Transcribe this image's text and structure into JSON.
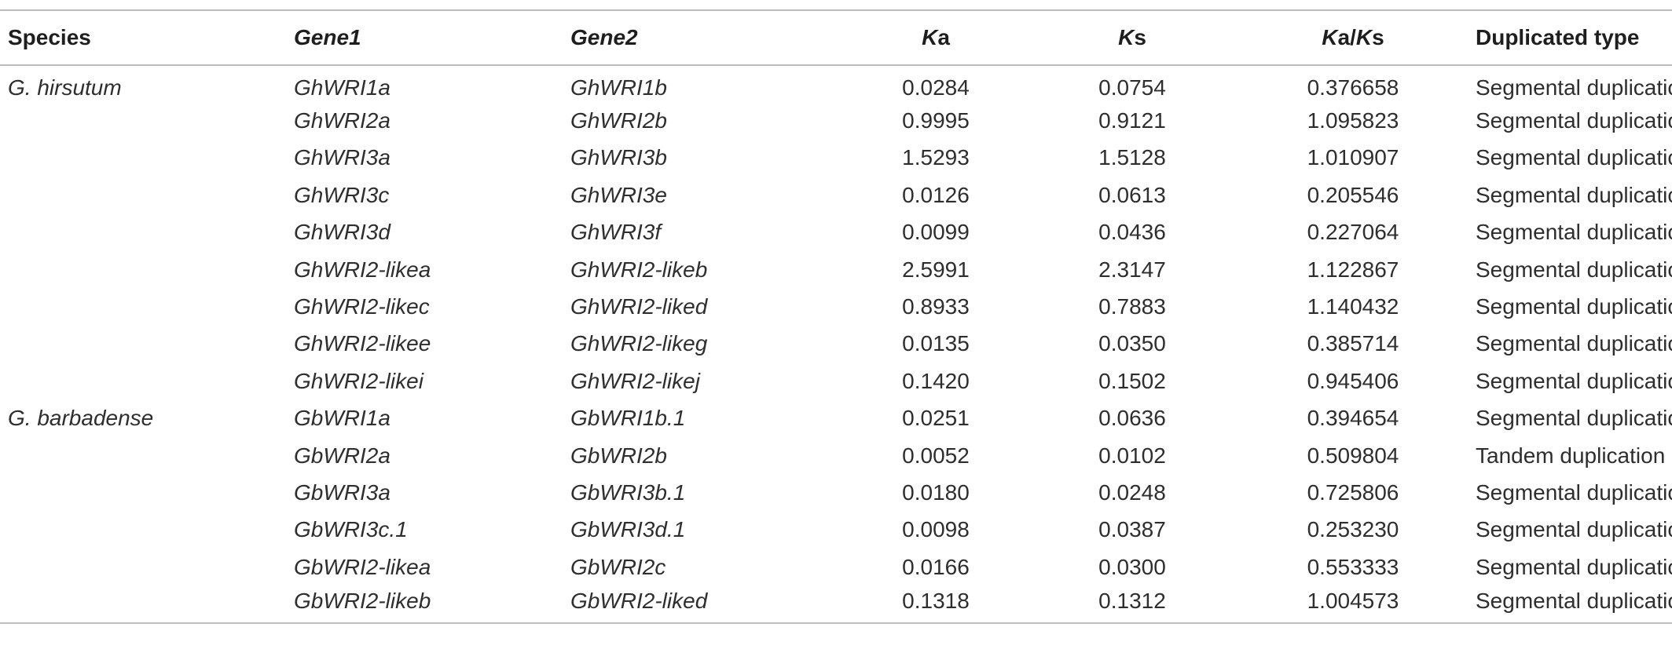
{
  "table": {
    "headers": {
      "species": "Species",
      "gene1": "Gene1",
      "gene2": "Gene2",
      "ka_k": "K",
      "ka_a": "a",
      "ks_k": "K",
      "ks_s": "s",
      "kaks_k1": "K",
      "kaks_mid": "a/",
      "kaks_k2": "K",
      "kaks_s": "s",
      "type": "Duplicated type"
    },
    "rows": [
      {
        "species": "G. hirsutum",
        "gene1": "GhWRI1a",
        "gene2": "GhWRI1b",
        "ka": "0.0284",
        "ks": "0.0754",
        "kaks": "0.376658",
        "type": "Segmental duplication"
      },
      {
        "species": "",
        "gene1": "GhWRI2a",
        "gene2": "GhWRI2b",
        "ka": "0.9995",
        "ks": "0.9121",
        "kaks": "1.095823",
        "type": "Segmental duplication"
      },
      {
        "species": "",
        "gene1": "GhWRI3a",
        "gene2": "GhWRI3b",
        "ka": "1.5293",
        "ks": "1.5128",
        "kaks": "1.010907",
        "type": "Segmental duplication"
      },
      {
        "species": "",
        "gene1": "GhWRI3c",
        "gene2": "GhWRI3e",
        "ka": "0.0126",
        "ks": "0.0613",
        "kaks": "0.205546",
        "type": "Segmental duplication"
      },
      {
        "species": "",
        "gene1": "GhWRI3d",
        "gene2": "GhWRI3f",
        "ka": "0.0099",
        "ks": "0.0436",
        "kaks": "0.227064",
        "type": "Segmental duplication"
      },
      {
        "species": "",
        "gene1": "GhWRI2-likea",
        "gene2": "GhWRI2-likeb",
        "ka": "2.5991",
        "ks": "2.3147",
        "kaks": "1.122867",
        "type": "Segmental duplication"
      },
      {
        "species": "",
        "gene1": "GhWRI2-likec",
        "gene2": "GhWRI2-liked",
        "ka": "0.8933",
        "ks": "0.7883",
        "kaks": "1.140432",
        "type": "Segmental duplication"
      },
      {
        "species": "",
        "gene1": "GhWRI2-likee",
        "gene2": "GhWRI2-likeg",
        "ka": "0.0135",
        "ks": "0.0350",
        "kaks": "0.385714",
        "type": "Segmental duplication"
      },
      {
        "species": "",
        "gene1": "GhWRI2-likei",
        "gene2": "GhWRI2-likej",
        "ka": "0.1420",
        "ks": "0.1502",
        "kaks": "0.945406",
        "type": "Segmental duplication"
      },
      {
        "species": "G. barbadense",
        "gene1": "GbWRI1a",
        "gene2": "GbWRI1b.1",
        "ka": "0.0251",
        "ks": "0.0636",
        "kaks": "0.394654",
        "type": "Segmental duplication"
      },
      {
        "species": "",
        "gene1": "GbWRI2a",
        "gene2": "GbWRI2b",
        "ka": "0.0052",
        "ks": "0.0102",
        "kaks": "0.509804",
        "type": "Tandem duplication"
      },
      {
        "species": "",
        "gene1": "GbWRI3a",
        "gene2": "GbWRI3b.1",
        "ka": "0.0180",
        "ks": "0.0248",
        "kaks": "0.725806",
        "type": "Segmental duplication"
      },
      {
        "species": "",
        "gene1": "GbWRI3c.1",
        "gene2": "GbWRI3d.1",
        "ka": "0.0098",
        "ks": "0.0387",
        "kaks": "0.253230",
        "type": "Segmental duplication"
      },
      {
        "species": "",
        "gene1": "GbWRI2-likea",
        "gene2": "GbWRI2c",
        "ka": "0.0166",
        "ks": "0.0300",
        "kaks": "0.553333",
        "type": "Segmental duplication"
      },
      {
        "species": "",
        "gene1": "GbWRI2-likeb",
        "gene2": "GbWRI2-liked",
        "ka": "0.1318",
        "ks": "0.1312",
        "kaks": "1.004573",
        "type": "Segmental duplication"
      }
    ]
  }
}
